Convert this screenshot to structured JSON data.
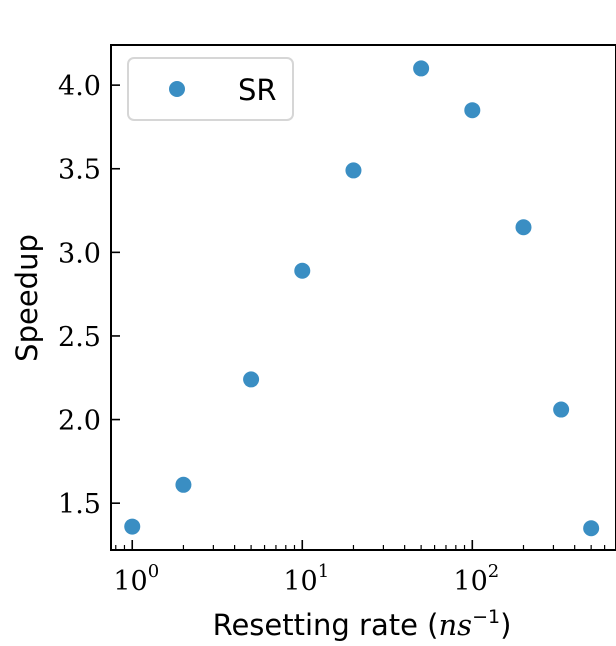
{
  "chart_data": {
    "type": "scatter",
    "xlabel_text": "Resetting rate ",
    "xlabel_math_base": "ns",
    "xlabel_math_exp": "−1",
    "ylabel": "Speedup",
    "xscale": "log",
    "xlim": [
      0.75,
      700
    ],
    "ylim": [
      1.22,
      4.24
    ],
    "grid": false,
    "legend_position": "upper-left",
    "x_ticks": [
      {
        "value": 1,
        "base": "10",
        "exp": "0"
      },
      {
        "value": 10,
        "base": "10",
        "exp": "1"
      },
      {
        "value": 100,
        "base": "10",
        "exp": "2"
      }
    ],
    "y_ticks": [
      {
        "value": 1.5,
        "label": "1.5"
      },
      {
        "value": 2.0,
        "label": "2.0"
      },
      {
        "value": 2.5,
        "label": "2.5"
      },
      {
        "value": 3.0,
        "label": "3.0"
      },
      {
        "value": 3.5,
        "label": "3.5"
      },
      {
        "value": 4.0,
        "label": "4.0"
      }
    ],
    "series": [
      {
        "name": "SR",
        "color": "#3a8ec3",
        "x": [
          1,
          2,
          5,
          10,
          20,
          50,
          100,
          200,
          333,
          500
        ],
        "y": [
          1.36,
          1.61,
          2.24,
          2.89,
          3.49,
          4.1,
          3.85,
          3.15,
          2.06,
          1.35
        ]
      }
    ]
  }
}
